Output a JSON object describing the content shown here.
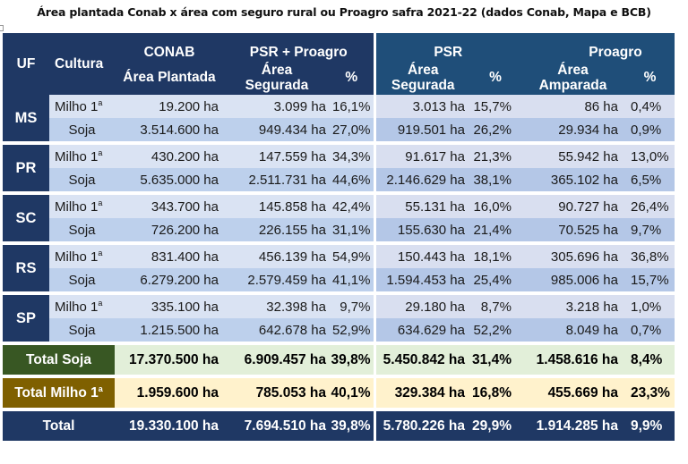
{
  "title": "Área plantada Conab x área com seguro rural ou Proagro safra 2021-22 (dados Conab, Mapa e BCB)",
  "header": {
    "uf": "UF",
    "cultura": "Cultura",
    "conab": "CONAB",
    "psr_proagro": "PSR + Proagro",
    "psr": "PSR",
    "proagro": "Proagro",
    "area_plantada": "Área Plantada",
    "area_segurada_1": "Área",
    "area_segurada_2": "Segurada",
    "area_amparada_1": "Área",
    "area_amparada_2": "Amparada",
    "pct": "%"
  },
  "crops": {
    "milho": "Milho 1",
    "milho_sup": "a",
    "soja": "Soja"
  },
  "states": [
    {
      "uf": "MS",
      "rows": [
        {
          "crop": "milho",
          "area_plantada": "19.200 ha",
          "psr_proagro_area": "3.099 ha",
          "psr_proagro_pct": "16,1%",
          "psr_area": "3.013 ha",
          "psr_pct": "15,7%",
          "proagro_area": "86 ha",
          "proagro_pct": "0,4%"
        },
        {
          "crop": "soja",
          "area_plantada": "3.514.600 ha",
          "psr_proagro_area": "949.434 ha",
          "psr_proagro_pct": "27,0%",
          "psr_area": "919.501 ha",
          "psr_pct": "26,2%",
          "proagro_area": "29.934 ha",
          "proagro_pct": "0,9%"
        }
      ]
    },
    {
      "uf": "PR",
      "rows": [
        {
          "crop": "milho",
          "area_plantada": "430.200 ha",
          "psr_proagro_area": "147.559 ha",
          "psr_proagro_pct": "34,3%",
          "psr_area": "91.617 ha",
          "psr_pct": "21,3%",
          "proagro_area": "55.942 ha",
          "proagro_pct": "13,0%"
        },
        {
          "crop": "soja",
          "area_plantada": "5.635.000 ha",
          "psr_proagro_area": "2.511.731 ha",
          "psr_proagro_pct": "44,6%",
          "psr_area": "2.146.629 ha",
          "psr_pct": "38,1%",
          "proagro_area": "365.102 ha",
          "proagro_pct": "6,5%"
        }
      ]
    },
    {
      "uf": "SC",
      "rows": [
        {
          "crop": "milho",
          "area_plantada": "343.700 ha",
          "psr_proagro_area": "145.858 ha",
          "psr_proagro_pct": "42,4%",
          "psr_area": "55.131 ha",
          "psr_pct": "16,0%",
          "proagro_area": "90.727 ha",
          "proagro_pct": "26,4%"
        },
        {
          "crop": "soja",
          "area_plantada": "726.200 ha",
          "psr_proagro_area": "226.155 ha",
          "psr_proagro_pct": "31,1%",
          "psr_area": "155.630 ha",
          "psr_pct": "21,4%",
          "proagro_area": "70.525 ha",
          "proagro_pct": "9,7%"
        }
      ]
    },
    {
      "uf": "RS",
      "rows": [
        {
          "crop": "milho",
          "area_plantada": "831.400 ha",
          "psr_proagro_area": "456.139 ha",
          "psr_proagro_pct": "54,9%",
          "psr_area": "150.443 ha",
          "psr_pct": "18,1%",
          "proagro_area": "305.696 ha",
          "proagro_pct": "36,8%"
        },
        {
          "crop": "soja",
          "area_plantada": "6.279.200 ha",
          "psr_proagro_area": "2.579.459 ha",
          "psr_proagro_pct": "41,1%",
          "psr_area": "1.594.453 ha",
          "psr_pct": "25,4%",
          "proagro_area": "985.006 ha",
          "proagro_pct": "15,7%"
        }
      ]
    },
    {
      "uf": "SP",
      "rows": [
        {
          "crop": "milho",
          "area_plantada": "335.100 ha",
          "psr_proagro_area": "32.398 ha",
          "psr_proagro_pct": "9,7%",
          "psr_area": "29.180 ha",
          "psr_pct": "8,7%",
          "proagro_area": "3.218 ha",
          "proagro_pct": "1,0%"
        },
        {
          "crop": "soja",
          "area_plantada": "1.215.500 ha",
          "psr_proagro_area": "642.678 ha",
          "psr_proagro_pct": "52,9%",
          "psr_area": "634.629 ha",
          "psr_pct": "52,2%",
          "proagro_area": "8.049 ha",
          "proagro_pct": "0,7%"
        }
      ]
    }
  ],
  "totals": [
    {
      "key": "soja",
      "label": "Total Soja",
      "label_sup": "",
      "area_plantada": "17.370.500 ha",
      "psr_proagro_area": "6.909.457 ha",
      "psr_proagro_pct": "39,8%",
      "psr_area": "5.450.842 ha",
      "psr_pct": "31,4%",
      "proagro_area": "1.458.616 ha",
      "proagro_pct": "8,4%"
    },
    {
      "key": "milho",
      "label": "Total Milho 1",
      "label_sup": "a",
      "area_plantada": "1.959.600 ha",
      "psr_proagro_area": "785.053 ha",
      "psr_proagro_pct": "40,1%",
      "psr_area": "329.384 ha",
      "psr_pct": "16,8%",
      "proagro_area": "455.669 ha",
      "proagro_pct": "23,3%"
    },
    {
      "key": "all",
      "label": "Total",
      "label_sup": "",
      "area_plantada": "19.330.100 ha",
      "psr_proagro_area": "7.694.510 ha",
      "psr_proagro_pct": "39,8%",
      "psr_area": "5.780.226 ha",
      "psr_pct": "29,9%",
      "proagro_area": "1.914.285 ha",
      "proagro_pct": "9,9%"
    }
  ],
  "colors": {
    "header_left": "#1f3864",
    "header_right": "#1f4e79",
    "total_soja": "#385723",
    "total_milho": "#7f6000",
    "total_soja_bg": "#e2efd9",
    "total_milho_bg": "#fff2cc"
  }
}
